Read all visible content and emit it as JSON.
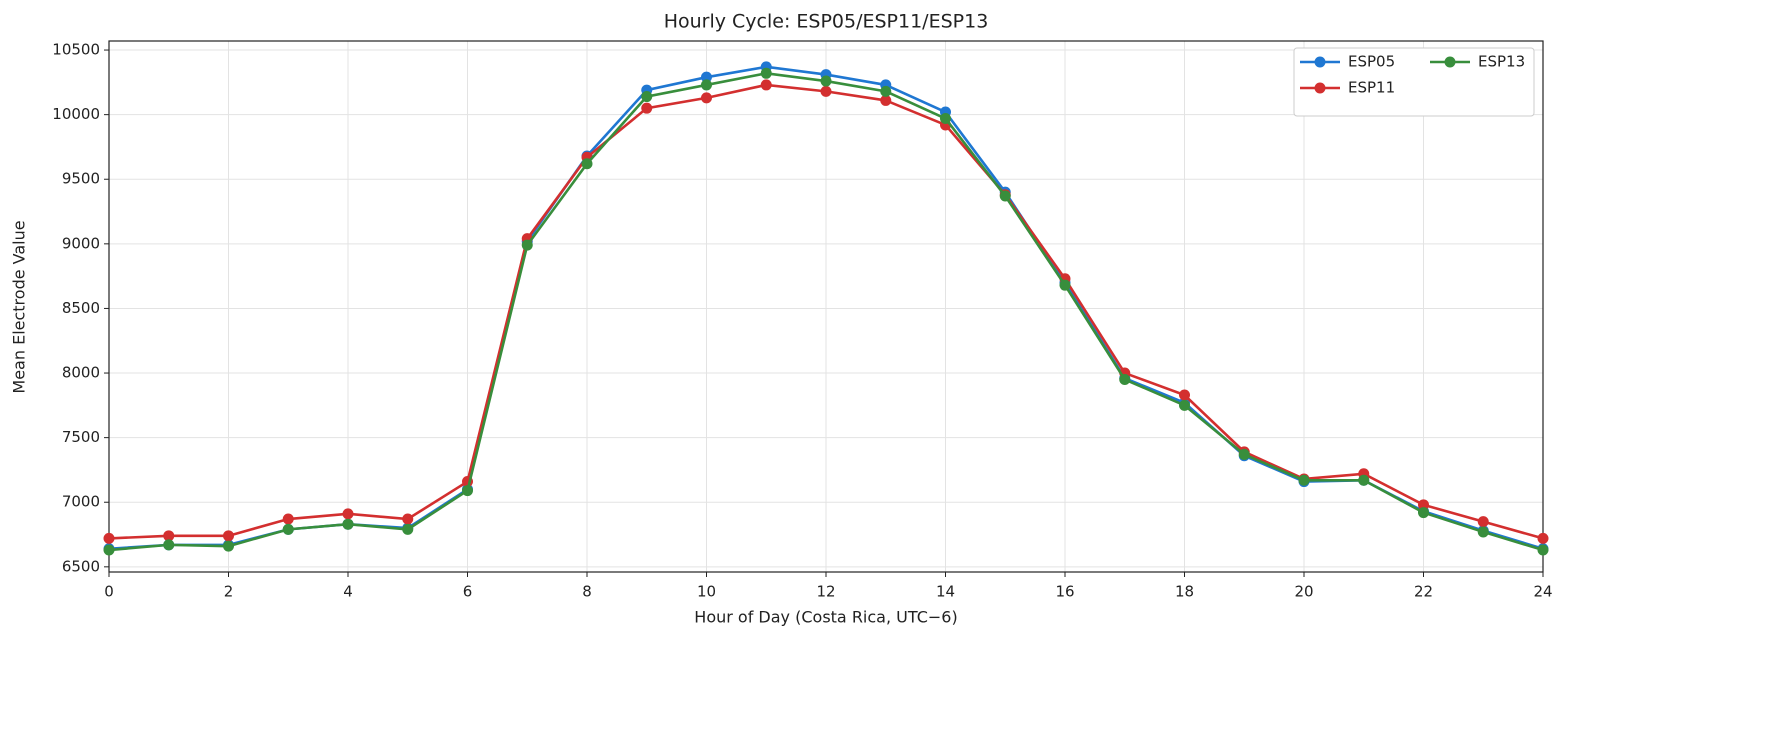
{
  "chart_data": {
    "type": "line",
    "title": "Hourly Cycle: ESP05/ESP11/ESP13",
    "x_label": "Hour of Day (Costa Rica, UTC−6)",
    "y_label": "Mean Electrode Value",
    "x": [
      0,
      1,
      2,
      3,
      4,
      5,
      6,
      7,
      8,
      9,
      10,
      11,
      12,
      13,
      14,
      15,
      16,
      17,
      18,
      19,
      20,
      21,
      22,
      23,
      24
    ],
    "series": [
      {
        "name": "ESP05",
        "color": "#1f77d2",
        "values": [
          6640,
          6670,
          6670,
          6790,
          6830,
          6800,
          7100,
          9020,
          9680,
          10190,
          10290,
          10370,
          10310,
          10230,
          10020,
          9400,
          8700,
          7960,
          7770,
          7360,
          7160,
          7170,
          6930,
          6780,
          6640
        ]
      },
      {
        "name": "ESP11",
        "color": "#d32f2f",
        "values": [
          6720,
          6740,
          6740,
          6870,
          6910,
          6870,
          7160,
          9040,
          9670,
          10050,
          10130,
          10230,
          10180,
          10110,
          9920,
          9380,
          8730,
          8000,
          7830,
          7390,
          7180,
          7220,
          6980,
          6850,
          6720
        ]
      },
      {
        "name": "ESP13",
        "color": "#388e3c",
        "values": [
          6630,
          6670,
          6660,
          6790,
          6830,
          6790,
          7090,
          8990,
          9620,
          10140,
          10230,
          10320,
          10260,
          10180,
          9970,
          9370,
          8680,
          7950,
          7750,
          7370,
          7170,
          7170,
          6920,
          6770,
          6630
        ]
      }
    ],
    "xlim": [
      0,
      24
    ],
    "xticks": [
      0,
      2,
      4,
      6,
      8,
      10,
      12,
      14,
      16,
      18,
      20,
      22,
      24
    ],
    "ylim": [
      6460,
      10570
    ],
    "yticks": [
      6500,
      7000,
      7500,
      8000,
      8500,
      9000,
      9500,
      10000,
      10500
    ],
    "grid": true,
    "legend": "upper right"
  }
}
